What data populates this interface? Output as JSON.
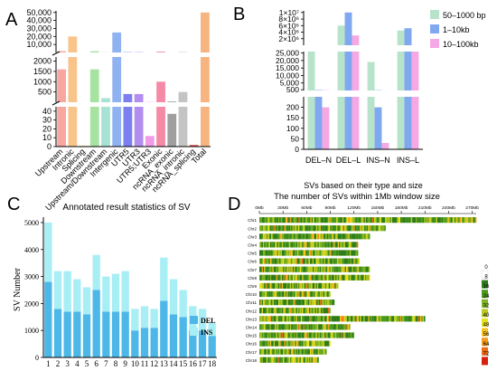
{
  "panels": {
    "A": {
      "letter": "A",
      "chart_data": {
        "type": "bar",
        "categories": [
          "Upstream",
          "Intronic",
          "Splicing",
          "Downstream",
          "Upstream/Downstream",
          "Intergenic",
          "UTR5",
          "UTR3",
          "UTR5;UTR3",
          "Exonic",
          "ncRNA_exonic",
          "ncRNA_intronic",
          "ncRNA_splicing",
          "Total"
        ],
        "values": [
          1600,
          20000,
          1,
          1600,
          200,
          25000,
          400,
          400,
          12,
          1000,
          37,
          500,
          2,
          50000
        ],
        "colors": [
          "#f7a6a0",
          "#f9c48a",
          "#f8ee9a",
          "#a6e3a1",
          "#a6e3d4",
          "#8fb3f0",
          "#7d7ef0",
          "#b28ef0",
          "#f09ce8",
          "#f48aa6",
          "#a09e9e",
          "#c4c4c4",
          "#e06464",
          "#f8b480"
        ],
        "segments": [
          {
            "range": [
              0,
              45
            ],
            "ticks": [
              "0",
              "10",
              "20",
              "30",
              "40"
            ],
            "tick_values": [
              0,
              10,
              20,
              30,
              40
            ]
          },
          {
            "range": [
              0,
              2200
            ],
            "ticks": [
              "500",
              "1000",
              "1500",
              "2000"
            ],
            "tick_values": [
              500,
              1000,
              1500,
              2000
            ]
          },
          {
            "range": [
              0,
              52000
            ],
            "ticks": [
              "10,000",
              "20,000",
              "30,000",
              "40,000",
              "50,000"
            ],
            "tick_values": [
              10000,
              20000,
              30000,
              40000,
              50000
            ]
          }
        ]
      }
    },
    "B": {
      "letter": "B",
      "chart_data": {
        "type": "bar",
        "categories": [
          "DEL–N",
          "DEL–L",
          "INS–N",
          "INS–L"
        ],
        "series": [
          {
            "name": "50–1000 bp",
            "color": "#b6e3c9",
            "values": [
              30000,
              6000000,
              19000,
              4500000
            ]
          },
          {
            "name": "1–10kb",
            "color": "#7fa8f0",
            "values": [
              300,
              10000000,
              200,
              5200000
            ]
          },
          {
            "name": "10–100kb",
            "color": "#f5a8e3",
            "values": [
              200,
              3000000,
              30,
              30000
            ]
          }
        ],
        "xlabel": "SVs based on their type and size",
        "segments": [
          {
            "range": [
              0,
              250
            ],
            "ticks": [
              "0",
              "50",
              "100",
              "150",
              "200"
            ],
            "tick_values": [
              0,
              50,
              100,
              150,
              200
            ]
          },
          {
            "range": [
              0,
              26000
            ],
            "ticks": [
              "500",
              "5,000",
              "10,000",
              "15,000",
              "20,000",
              "25,000"
            ],
            "tick_values": [
              500,
              5000,
              10000,
              15000,
              20000,
              25000
            ]
          },
          {
            "range": [
              0,
              10500000
            ],
            "ticks": [
              "2×10⁶",
              "4×10⁶",
              "6×10⁶",
              "8×10⁶",
              "1×10⁷"
            ],
            "tick_values": [
              2000000,
              4000000,
              6000000,
              8000000,
              10000000
            ]
          }
        ]
      }
    },
    "C": {
      "letter": "C",
      "chart_data": {
        "type": "bar",
        "title": "Annotated result statistics of SV",
        "ylabel": "SV Number",
        "categories": [
          "1",
          "2",
          "3",
          "4",
          "5",
          "6",
          "7",
          "8",
          "9",
          "10",
          "11",
          "12",
          "13",
          "14",
          "15",
          "16",
          "17",
          "18"
        ],
        "ylim": [
          0,
          5200
        ],
        "yticks": [
          "0",
          "1000",
          "2000",
          "3000",
          "4000",
          "5000"
        ],
        "ytick_values": [
          0,
          1000,
          2000,
          3000,
          4000,
          5000
        ],
        "series": [
          {
            "name": "DEL",
            "color": "#4db8e8",
            "values": [
              2800,
              1800,
              1700,
              1700,
              1600,
              2500,
              1700,
              1700,
              1700,
              1000,
              1100,
              1100,
              2100,
              1600,
              1500,
              1000,
              1000,
              800
            ]
          },
          {
            "name": "INS",
            "color": "#a8eef5",
            "values": [
              2200,
              1400,
              1500,
              1200,
              1000,
              1300,
              1300,
              1400,
              1500,
              800,
              800,
              700,
              1600,
              1300,
              1000,
              900,
              800,
              500
            ]
          }
        ]
      }
    },
    "D": {
      "letter": "D",
      "chart_data": {
        "type": "heatmap",
        "title": "The number of SVs within 1Mb window size",
        "x_axis_labels": [
          "0Mb",
          "30Mb",
          "60Mb",
          "90Mb",
          "120Mb",
          "150Mb",
          "180Mb",
          "210Mb",
          "240Mb",
          "270Mb"
        ],
        "x_axis_values": [
          0,
          30,
          60,
          90,
          120,
          150,
          180,
          210,
          240,
          270
        ],
        "xlim": [
          0,
          275
        ],
        "chromosomes": [
          {
            "label": "Chr1",
            "length": 275
          },
          {
            "label": "Chr2",
            "length": 160
          },
          {
            "label": "Chr3",
            "length": 140
          },
          {
            "label": "Chr4",
            "length": 125
          },
          {
            "label": "Chr5",
            "length": 125
          },
          {
            "label": "Chr6",
            "length": 127
          },
          {
            "label": "Chr7",
            "length": 140
          },
          {
            "label": "Chr8",
            "length": 140
          },
          {
            "label": "Chr9",
            "length": 100
          },
          {
            "label": "Chr10",
            "length": 90
          },
          {
            "label": "Chr11",
            "length": 95
          },
          {
            "label": "Chr12",
            "length": 90
          },
          {
            "label": "Chr13",
            "length": 210
          },
          {
            "label": "Chr14",
            "length": 115
          },
          {
            "label": "Chr15",
            "length": 120
          },
          {
            "label": "Chr16",
            "length": 90
          },
          {
            "label": "Chr17",
            "length": 85
          },
          {
            "label": "Chr18",
            "length": 75
          }
        ],
        "legend": {
          "labels": [
            "0",
            "8",
            "16",
            "24",
            "32",
            "40",
            "48",
            "56",
            "64",
            "72"
          ],
          "colors": [
            "#ffffff",
            "#2e7d1a",
            "#4c9a1e",
            "#7fb31f",
            "#b8cc22",
            "#e8e01a",
            "#f7c21a",
            "#f59a1a",
            "#f06a14",
            "#d9200f"
          ]
        }
      }
    }
  }
}
